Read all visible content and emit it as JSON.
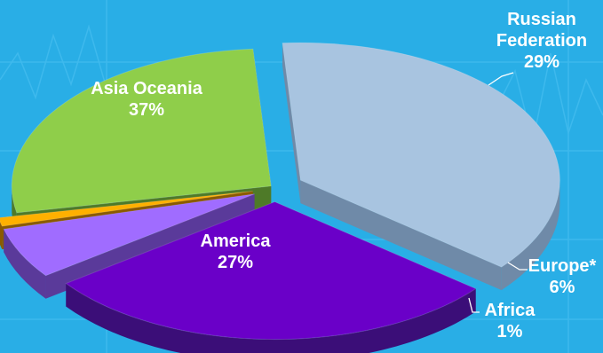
{
  "chart_data": {
    "type": "pie",
    "style": "3d-exploded",
    "title": "",
    "legend": "none",
    "slices": [
      {
        "label_lines": [
          "Asia Oceania"
        ],
        "value": 37,
        "value_label": "37%",
        "color": "#a8c4e0",
        "side_color": "#6f8aa8"
      },
      {
        "label_lines": [
          "Russian",
          "Federation"
        ],
        "value": 29,
        "value_label": "29%",
        "color": "#6a00c8",
        "side_color": "#3b0e78"
      },
      {
        "label_lines": [
          "Europe*"
        ],
        "value": 6,
        "value_label": "6%",
        "color": "#a06cff",
        "side_color": "#5a3a9a"
      },
      {
        "label_lines": [
          "Africa"
        ],
        "value": 1,
        "value_label": "1%",
        "color": "#ffb000",
        "side_color": "#8a5a00"
      },
      {
        "label_lines": [
          "America"
        ],
        "value": 27,
        "value_label": "27%",
        "color": "#8fce4a",
        "side_color": "#4e7a28"
      }
    ]
  },
  "colors": {
    "background": "#29aee6",
    "label_text": "#ffffff",
    "leader_line": "#ffffff"
  }
}
